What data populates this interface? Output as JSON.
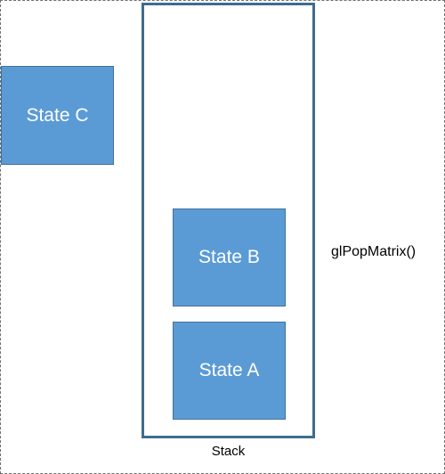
{
  "diagram": {
    "stack_label": "Stack",
    "operation_label": "glPopMatrix()",
    "states": {
      "popped": "State C",
      "middle": "State B",
      "bottom": "State A"
    }
  },
  "colors": {
    "state_fill": "#5b9bd5",
    "state_border": "#41719c",
    "stack_border": "#3e6c8f",
    "label_text": "#000000",
    "state_text": "#ffffff"
  }
}
